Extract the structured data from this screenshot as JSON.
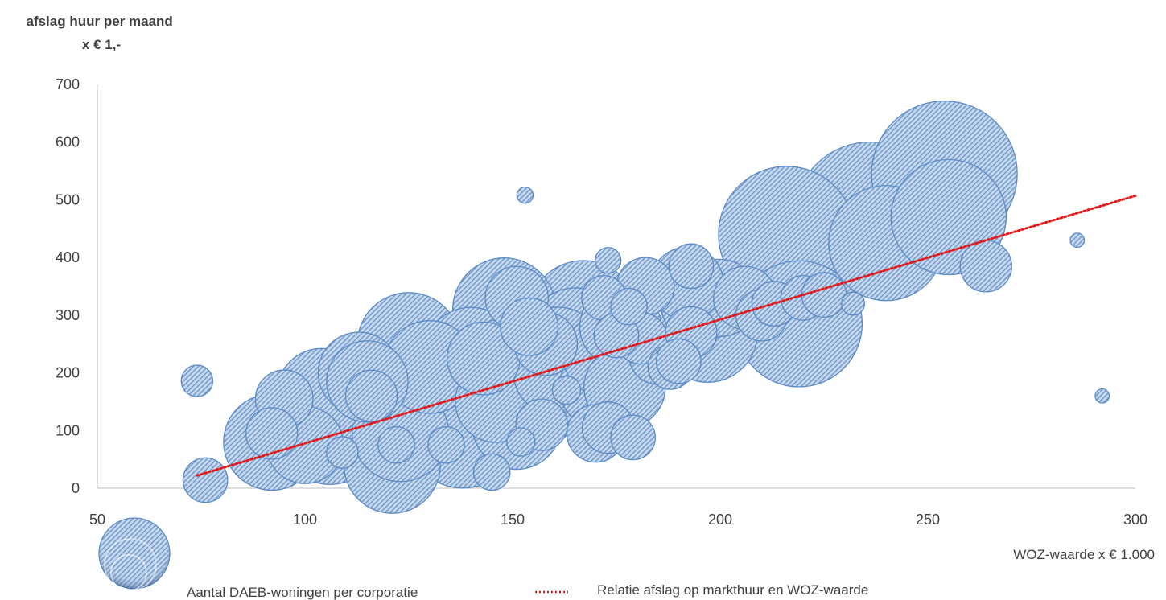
{
  "chart_data": {
    "type": "bubble",
    "ylabel_lines": [
      "afslag huur per maand",
      "x € 1,-"
    ],
    "xlabel": "WOZ-waarde x € 1.000",
    "xlim": [
      50,
      300
    ],
    "ylim": [
      0,
      700
    ],
    "x_ticks": [
      50,
      100,
      150,
      200,
      250,
      300
    ],
    "y_ticks": [
      0,
      100,
      200,
      300,
      400,
      500,
      600,
      700
    ],
    "grid": false,
    "legend_position": "bottom",
    "colors": {
      "bubble_fill": "#c5d8ee",
      "bubble_stroke": "#5b8ac6",
      "trend": "#e01a1a",
      "axis": "#bfbfbf"
    },
    "series": [
      {
        "name": "Aantal DAEB-woningen per corporatie",
        "points": [
          {
            "x": 74,
            "y": 186,
            "size": 1.5
          },
          {
            "x": 76,
            "y": 14,
            "size": 3
          },
          {
            "x": 92,
            "y": 80,
            "size": 14
          },
          {
            "x": 92,
            "y": 95,
            "size": 4
          },
          {
            "x": 95,
            "y": 155,
            "size": 5
          },
          {
            "x": 100,
            "y": 75,
            "size": 9
          },
          {
            "x": 104,
            "y": 165,
            "size": 12
          },
          {
            "x": 106,
            "y": 90,
            "size": 14
          },
          {
            "x": 109,
            "y": 62,
            "size": 1.5
          },
          {
            "x": 113,
            "y": 200,
            "size": 10
          },
          {
            "x": 115,
            "y": 185,
            "size": 10
          },
          {
            "x": 116,
            "y": 160,
            "size": 4
          },
          {
            "x": 117,
            "y": 95,
            "size": 16
          },
          {
            "x": 120,
            "y": 75,
            "size": 16
          },
          {
            "x": 121,
            "y": 40,
            "size": 14
          },
          {
            "x": 123,
            "y": 95,
            "size": 14
          },
          {
            "x": 122,
            "y": 75,
            "size": 2
          },
          {
            "x": 125,
            "y": 250,
            "size": 16
          },
          {
            "x": 127,
            "y": 190,
            "size": 24
          },
          {
            "x": 130,
            "y": 210,
            "size": 13
          },
          {
            "x": 134,
            "y": 75,
            "size": 2
          },
          {
            "x": 138,
            "y": 100,
            "size": 20
          },
          {
            "x": 140,
            "y": 230,
            "size": 14
          },
          {
            "x": 143,
            "y": 225,
            "size": 8
          },
          {
            "x": 145,
            "y": 28,
            "size": 2
          },
          {
            "x": 146,
            "y": 150,
            "size": 10
          },
          {
            "x": 148,
            "y": 310,
            "size": 16
          },
          {
            "x": 148,
            "y": 210,
            "size": 14
          },
          {
            "x": 151,
            "y": 110,
            "size": 12
          },
          {
            "x": 151,
            "y": 330,
            "size": 6
          },
          {
            "x": 152,
            "y": 80,
            "size": 1.2
          },
          {
            "x": 153,
            "y": 508,
            "size": 0.4
          },
          {
            "x": 154,
            "y": 280,
            "size": 5
          },
          {
            "x": 156,
            "y": 180,
            "size": 14
          },
          {
            "x": 156,
            "y": 150,
            "size": 12
          },
          {
            "x": 157,
            "y": 110,
            "size": 4
          },
          {
            "x": 158,
            "y": 250,
            "size": 6
          },
          {
            "x": 160,
            "y": 200,
            "size": 10
          },
          {
            "x": 161,
            "y": 240,
            "size": 11
          },
          {
            "x": 163,
            "y": 170,
            "size": 1.2
          },
          {
            "x": 165,
            "y": 270,
            "size": 12
          },
          {
            "x": 167,
            "y": 300,
            "size": 18
          },
          {
            "x": 168,
            "y": 215,
            "size": 13
          },
          {
            "x": 170,
            "y": 95,
            "size": 5
          },
          {
            "x": 171,
            "y": 175,
            "size": 10
          },
          {
            "x": 172,
            "y": 330,
            "size": 3
          },
          {
            "x": 172,
            "y": 230,
            "size": 10
          },
          {
            "x": 173,
            "y": 105,
            "size": 4
          },
          {
            "x": 173,
            "y": 395,
            "size": 1
          },
          {
            "x": 175,
            "y": 265,
            "size": 3
          },
          {
            "x": 176,
            "y": 280,
            "size": 10
          },
          {
            "x": 177,
            "y": 175,
            "size": 10
          },
          {
            "x": 178,
            "y": 315,
            "size": 2
          },
          {
            "x": 179,
            "y": 88,
            "size": 3
          },
          {
            "x": 181,
            "y": 260,
            "size": 4
          },
          {
            "x": 182,
            "y": 350,
            "size": 5
          },
          {
            "x": 185,
            "y": 230,
            "size": 5
          },
          {
            "x": 188,
            "y": 210,
            "size": 3
          },
          {
            "x": 190,
            "y": 220,
            "size": 3
          },
          {
            "x": 192,
            "y": 355,
            "size": 8
          },
          {
            "x": 193,
            "y": 385,
            "size": 3
          },
          {
            "x": 193,
            "y": 270,
            "size": 4
          },
          {
            "x": 195,
            "y": 320,
            "size": 9
          },
          {
            "x": 197,
            "y": 270,
            "size": 15
          },
          {
            "x": 200,
            "y": 330,
            "size": 9
          },
          {
            "x": 206,
            "y": 330,
            "size": 6
          },
          {
            "x": 210,
            "y": 300,
            "size": 4
          },
          {
            "x": 213,
            "y": 320,
            "size": 3
          },
          {
            "x": 216,
            "y": 440,
            "size": 28
          },
          {
            "x": 219,
            "y": 285,
            "size": 24
          },
          {
            "x": 220,
            "y": 330,
            "size": 3
          },
          {
            "x": 225,
            "y": 335,
            "size": 3
          },
          {
            "x": 232,
            "y": 320,
            "size": 0.8
          },
          {
            "x": 236,
            "y": 470,
            "size": 34
          },
          {
            "x": 240,
            "y": 425,
            "size": 20
          },
          {
            "x": 254,
            "y": 545,
            "size": 32
          },
          {
            "x": 255,
            "y": 470,
            "size": 20
          },
          {
            "x": 264,
            "y": 385,
            "size": 4
          },
          {
            "x": 286,
            "y": 430,
            "size": 0.3
          },
          {
            "x": 292,
            "y": 160,
            "size": 0.3
          }
        ]
      },
      {
        "name": "Relatie afslag op markthuur en WOZ-waarde",
        "type": "line",
        "x": [
          74,
          300
        ],
        "values": [
          22,
          507
        ]
      }
    ]
  }
}
